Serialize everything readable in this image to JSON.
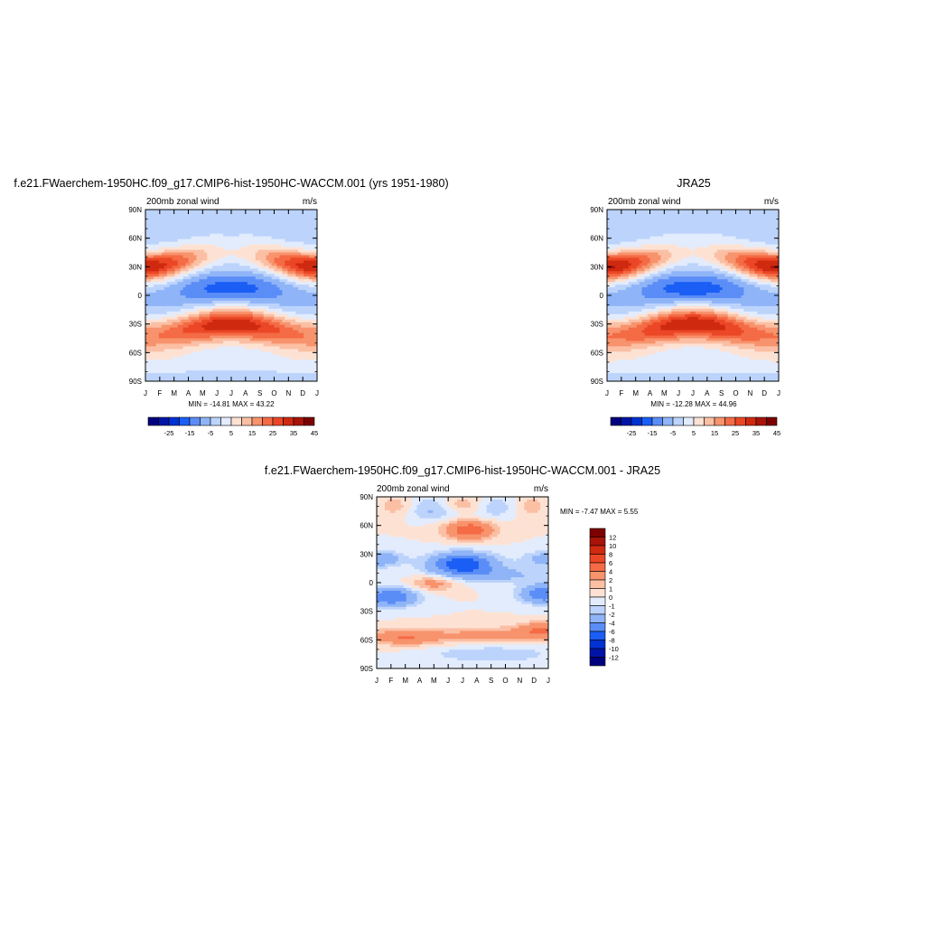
{
  "palette": {
    "wind": [
      "#00007f",
      "#0015a8",
      "#0031d2",
      "#1a5ef5",
      "#5b8df7",
      "#8fb4f7",
      "#bcd3fb",
      "#e2ecfd",
      "#fde2d4",
      "#fbbfa4",
      "#f7936d",
      "#f46b45",
      "#eb4726",
      "#cf2a10",
      "#a8140a",
      "#7d0000"
    ],
    "diff": [
      "#00007f",
      "#0015a8",
      "#0031d2",
      "#1a5ef5",
      "#5b8df7",
      "#8fb4f7",
      "#bcd3fb",
      "#e2ecfd",
      "#fde2d4",
      "#fbbfa4",
      "#f7936d",
      "#f46b45",
      "#eb4726",
      "#cf2a10",
      "#a8140a",
      "#7d0000"
    ]
  },
  "chart_data": [
    {
      "type": "heatmap",
      "title": "f.e21.FWaerchem-1950HC.f09_g17.CMIP6-hist-1950HC-WACCM.001 (yrs 1951-1980)",
      "left_label": "200mb zonal wind",
      "right_label": "m/s",
      "x_tick_labels": [
        "J",
        "F",
        "M",
        "A",
        "M",
        "J",
        "J",
        "A",
        "S",
        "O",
        "N",
        "D",
        "J"
      ],
      "y_tick_labels": [
        "90N",
        "60N",
        "30N",
        "0",
        "30S",
        "60S",
        "90S"
      ],
      "y_range": [
        -90,
        90
      ],
      "minmax_text": "MIN = -14.81 MAX =  43.22",
      "min": -14.81,
      "max": 43.22,
      "colorbar": {
        "orientation": "horizontal",
        "labels": [
          "-25",
          "-15",
          "-5",
          "5",
          "15",
          "25",
          "35",
          "45"
        ]
      },
      "features": [
        {
          "month": 0.5,
          "lat": 32,
          "value": 43
        },
        {
          "month": 12.5,
          "lat": 32,
          "value": 42
        },
        {
          "month": 6.5,
          "lat": -30,
          "value": 40
        },
        {
          "month": 6.5,
          "lat": 5,
          "value": -14
        },
        {
          "month": 1,
          "lat": -47,
          "value": 28
        }
      ]
    },
    {
      "type": "heatmap",
      "title": "JRA25",
      "left_label": "200mb zonal wind",
      "right_label": "m/s",
      "x_tick_labels": [
        "J",
        "F",
        "M",
        "A",
        "M",
        "J",
        "J",
        "A",
        "S",
        "O",
        "N",
        "D",
        "J"
      ],
      "y_tick_labels": [
        "90N",
        "60N",
        "30N",
        "0",
        "30S",
        "60S",
        "90S"
      ],
      "y_range": [
        -90,
        90
      ],
      "minmax_text": "MIN = -12.28 MAX =  44.96",
      "min": -12.28,
      "max": 44.96,
      "colorbar": {
        "orientation": "horizontal",
        "labels": [
          "-25",
          "-15",
          "-5",
          "5",
          "15",
          "25",
          "35",
          "45"
        ]
      },
      "features": [
        {
          "month": 0.5,
          "lat": 30,
          "value": 44
        },
        {
          "month": 12.5,
          "lat": 30,
          "value": 44
        },
        {
          "month": 6.5,
          "lat": -30,
          "value": 42
        },
        {
          "month": 6.5,
          "lat": 3,
          "value": -12
        }
      ]
    },
    {
      "type": "heatmap",
      "title": "f.e21.FWaerchem-1950HC.f09_g17.CMIP6-hist-1950HC-WACCM.001 - JRA25",
      "left_label": "200mb zonal wind",
      "right_label": "m/s",
      "x_tick_labels": [
        "J",
        "F",
        "M",
        "A",
        "M",
        "J",
        "J",
        "A",
        "S",
        "O",
        "N",
        "D",
        "J"
      ],
      "y_tick_labels": [
        "90N",
        "60N",
        "30N",
        "0",
        "30S",
        "60S",
        "90S"
      ],
      "y_range": [
        -90,
        90
      ],
      "minmax_text": "MIN =  -7.47 MAX =   5.55",
      "min": -7.47,
      "max": 5.55,
      "colorbar": {
        "orientation": "vertical",
        "labels": [
          "12",
          "10",
          "8",
          "6",
          "4",
          "2",
          "1",
          "0",
          "-1",
          "-2",
          "-4",
          "-6",
          "-8",
          "-10",
          "-12"
        ]
      },
      "features": [
        {
          "month": 6.5,
          "lat": 55,
          "value": 5.5
        },
        {
          "month": 6,
          "lat": 20,
          "value": -7.4
        },
        {
          "month": 1,
          "lat": -15,
          "value": -6
        },
        {
          "month": 11.5,
          "lat": -12,
          "value": -6
        },
        {
          "month": 2,
          "lat": -57,
          "value": 4
        },
        {
          "month": 11.5,
          "lat": -50,
          "value": 4
        },
        {
          "month": 4,
          "lat": 0,
          "value": 3
        }
      ]
    }
  ]
}
